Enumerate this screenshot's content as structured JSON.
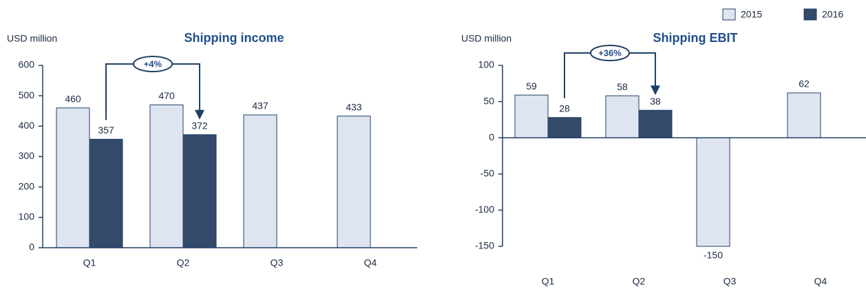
{
  "chart_data": [
    {
      "type": "bar",
      "title": "Shipping income",
      "ylabel": "USD million",
      "categories": [
        "Q1",
        "Q2",
        "Q3",
        "Q4"
      ],
      "series": [
        {
          "name": "2015",
          "color": "#dfe5f0",
          "values": [
            460,
            470,
            437,
            433
          ]
        },
        {
          "name": "2016",
          "color": "#344a6b",
          "values": [
            357,
            372,
            null,
            null
          ]
        }
      ],
      "ylim": [
        0,
        600
      ],
      "yticks": [
        0,
        100,
        200,
        300,
        400,
        500,
        600
      ],
      "annotation": "+4%"
    },
    {
      "type": "bar",
      "title": "Shipping EBIT",
      "ylabel": "USD million",
      "categories": [
        "Q1",
        "Q2",
        "Q3",
        "Q4"
      ],
      "series": [
        {
          "name": "2015",
          "color": "#dfe5f0",
          "values": [
            59,
            58,
            -150,
            62
          ]
        },
        {
          "name": "2016",
          "color": "#344a6b",
          "values": [
            28,
            38,
            null,
            null
          ]
        }
      ],
      "ylim": [
        -150,
        100
      ],
      "yticks": [
        -150,
        -100,
        -50,
        0,
        50,
        100
      ],
      "annotation": "+36%"
    }
  ]
}
